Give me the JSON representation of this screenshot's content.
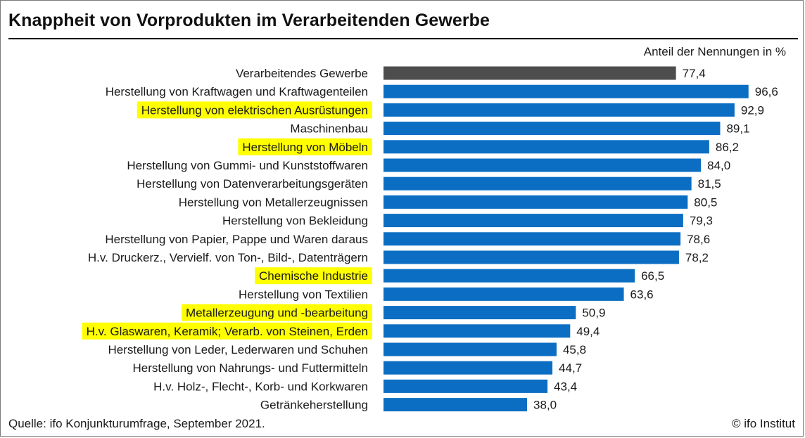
{
  "title": "Knappheit von Vorprodukten im Verarbeitenden Gewerbe",
  "unit_label": "Anteil der Nennungen in %",
  "source": "Quelle: ifo Konjunkturumfrage, September 2021.",
  "credit": "© ifo Institut",
  "colors": {
    "total_bar": "#4d4d4d",
    "bar": "#0b6ec3",
    "highlight": "#ffff00"
  },
  "chart_data": {
    "type": "bar",
    "orientation": "horizontal",
    "x_range": [
      0,
      100
    ],
    "grid": false,
    "categories": [
      "Verarbeitendes Gewerbe",
      "Herstellung von Kraftwagen und Kraftwagenteilen",
      "Herstellung von elektrischen Ausrüstungen",
      "Maschinenbau",
      "Herstellung von Möbeln",
      "Herstellung von Gummi- und Kunststoffwaren",
      "Herstellung von Datenverarbeitungsgeräten",
      "Herstellung von Metallerzeugnissen",
      "Herstellung von Bekleidung",
      "Herstellung von Papier, Pappe und Waren daraus",
      "H.v. Druckerz., Vervielf. von Ton-, Bild-, Datenträgern",
      "Chemische Industrie",
      "Herstellung von Textilien",
      "Metallerzeugung und -bearbeitung",
      "H.v. Glaswaren, Keramik; Verarb. von Steinen, Erden",
      "Herstellung von Leder, Lederwaren und Schuhen",
      "Herstellung von Nahrungs- und Futtermitteln",
      "H.v. Holz-, Flecht-, Korb- und Korkwaren",
      "Getränkeherstellung"
    ],
    "values": [
      77.4,
      96.6,
      92.9,
      89.1,
      86.2,
      84.0,
      81.5,
      80.5,
      79.3,
      78.6,
      78.2,
      66.5,
      63.6,
      50.9,
      49.4,
      45.8,
      44.7,
      43.4,
      38.0
    ],
    "value_labels": [
      "77,4",
      "96,6",
      "92,9",
      "89,1",
      "86,2",
      "84,0",
      "81,5",
      "80,5",
      "79,3",
      "78,6",
      "78,2",
      "66,5",
      "63,6",
      "50,9",
      "49,4",
      "45,8",
      "44,7",
      "43,4",
      "38,0"
    ],
    "highlighted": [
      false,
      false,
      true,
      false,
      true,
      false,
      false,
      false,
      false,
      false,
      false,
      true,
      false,
      true,
      true,
      false,
      false,
      false,
      false
    ],
    "total_index": 0
  }
}
